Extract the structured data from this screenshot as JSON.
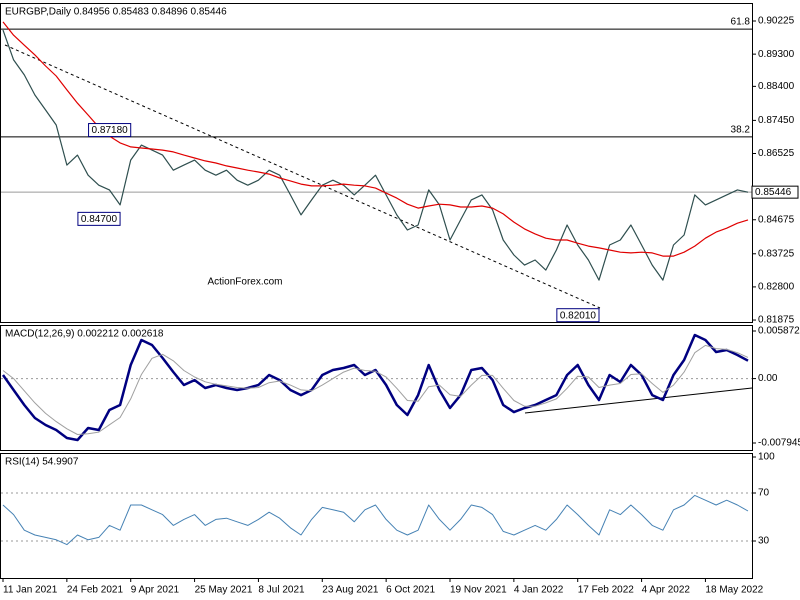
{
  "chart_data": [
    {
      "type": "line",
      "title": "EURGBP,Daily  0.84956 0.85483 0.84896 0.85446",
      "ylim": [
        0.8182,
        0.907
      ],
      "yticks": [
        0.90225,
        {
          "value": 0.893,
          "label": "0.89300"
        },
        {
          "value": 0.884,
          "label": "0.88400"
        },
        {
          "value": 0.8745,
          "label": "0.87450"
        },
        0.86525,
        0.84675,
        0.83725,
        {
          "value": 0.828,
          "label": "0.82800"
        },
        0.81875
      ],
      "levels": [
        {
          "value": 0.9,
          "label": "61.8"
        },
        {
          "value": 0.8699,
          "label": "38.2"
        }
      ],
      "current_price": 0.85446,
      "annotations": [
        {
          "value": 0.8718,
          "label": "0.87180",
          "x": 12
        },
        {
          "value": 0.847,
          "label": "0.84700",
          "x": 11
        },
        {
          "value": 0.8201,
          "label": "0.82010",
          "x": 56
        }
      ],
      "watermark": "ActionForex.com",
      "series": [
        {
          "color": "#2f4f4f",
          "values": [
            0.8997,
            0.8914,
            0.8872,
            0.8816,
            0.8774,
            0.8732,
            0.862,
            0.8648,
            0.8592,
            0.8564,
            0.8551,
            0.8509,
            0.8634,
            0.8676,
            0.8662,
            0.8648,
            0.8606,
            0.862,
            0.8634,
            0.8606,
            0.8592,
            0.8606,
            0.8578,
            0.8564,
            0.8578,
            0.8606,
            0.8592,
            0.8537,
            0.8481,
            0.8523,
            0.8564,
            0.8578,
            0.8564,
            0.8537,
            0.8564,
            0.8592,
            0.8537,
            0.8481,
            0.8439,
            0.8453,
            0.8551,
            0.8509,
            0.8411,
            0.8467,
            0.8523,
            0.8537,
            0.8495,
            0.8411,
            0.8369,
            0.8341,
            0.8355,
            0.8327,
            0.8383,
            0.8453,
            0.8397,
            0.8355,
            0.8299,
            0.8397,
            0.8411,
            0.8453,
            0.8397,
            0.8341,
            0.8299,
            0.8397,
            0.8425,
            0.8537,
            0.8509,
            0.8523,
            0.8537,
            0.8551,
            0.85446
          ]
        },
        {
          "color": "#e00000",
          "values": [
            0.902,
            0.8983,
            0.8955,
            0.8928,
            0.8897,
            0.8869,
            0.883,
            0.8793,
            0.876,
            0.8726,
            0.8701,
            0.8682,
            0.8671,
            0.8668,
            0.8665,
            0.8662,
            0.8657,
            0.8648,
            0.864,
            0.8632,
            0.8626,
            0.8618,
            0.8612,
            0.8606,
            0.8601,
            0.8595,
            0.8584,
            0.8576,
            0.8567,
            0.8562,
            0.8562,
            0.8564,
            0.8567,
            0.8564,
            0.8562,
            0.8556,
            0.8542,
            0.8528,
            0.8511,
            0.85,
            0.8506,
            0.8511,
            0.8509,
            0.8503,
            0.8503,
            0.8506,
            0.85,
            0.8484,
            0.8461,
            0.8442,
            0.8428,
            0.8416,
            0.8411,
            0.8411,
            0.8402,
            0.8394,
            0.8389,
            0.8383,
            0.8377,
            0.8375,
            0.8377,
            0.8375,
            0.8366,
            0.8366,
            0.8377,
            0.8394,
            0.8416,
            0.8433,
            0.8444,
            0.8458,
            0.8467
          ]
        }
      ]
    },
    {
      "type": "line",
      "title": "MACD(12,26,9) 0.002212 0.002618",
      "ylim": [
        -0.00881,
        0.00649
      ],
      "yticks": [
        0.005872,
        {
          "value": 0,
          "label": "0.00"
        },
        -0.007945
      ],
      "levels": [
        0
      ],
      "series": [
        {
          "color": "#000080",
          "width": 2.5,
          "values": [
            0.00044,
            -0.00141,
            -0.00326,
            -0.00486,
            -0.00573,
            -0.00634,
            -0.00733,
            -0.00758,
            -0.0061,
            -0.00634,
            -0.00388,
            -0.00326,
            0.00168,
            0.00476,
            0.00414,
            0.00254,
            0.00081,
            -0.00079,
            -0.00018,
            -0.00116,
            -0.00079,
            -0.00116,
            -0.00141,
            -0.00116,
            -0.00079,
            0.00044,
            -0.00018,
            -0.00141,
            -0.00203,
            -0.00141,
            0.00044,
            0.00106,
            0.00131,
            0.00168,
            0.00044,
            0.00106,
            -0.00079,
            -0.00326,
            -0.00449,
            -0.00203,
            0.00168,
            -0.00141,
            -0.00363,
            -0.00203,
            0.00106,
            0.00131,
            -0.00018,
            -0.00326,
            -0.00413,
            -0.00363,
            -0.00326,
            -0.00264,
            -0.00203,
            0.00044,
            0.00168,
            -0.00079,
            -0.00264,
            0.00044,
            -0.00042,
            0.00168,
            0.00044,
            -0.00203,
            -0.00264,
            0.00044,
            0.00229,
            0.00538,
            0.00476,
            0.00328,
            0.00353,
            0.00291,
            0.002212
          ]
        },
        {
          "color": "#a0a0a0",
          "width": 1,
          "values": [
            0.001,
            0.0,
            -0.0015,
            -0.003,
            -0.0043,
            -0.0053,
            -0.0062,
            -0.0069,
            -0.0068,
            -0.0066,
            -0.0057,
            -0.0048,
            -0.0025,
            0.0005,
            0.0025,
            0.003,
            0.0022,
            0.001,
            0.0002,
            -0.0004,
            -0.0007,
            -0.0009,
            -0.0011,
            -0.0012,
            -0.0011,
            -0.0005,
            -0.0003,
            -0.0008,
            -0.0014,
            -0.0015,
            -0.0008,
            0.0,
            0.0008,
            0.0013,
            0.001,
            0.0009,
            0.0002,
            -0.0012,
            -0.0027,
            -0.0028,
            -0.001,
            -0.0008,
            -0.002,
            -0.0022,
            -0.0008,
            0.0004,
            0.0004,
            -0.0012,
            -0.0027,
            -0.0034,
            -0.0034,
            -0.003,
            -0.0025,
            -0.0012,
            0.0003,
            0.0002,
            -0.0011,
            -0.0008,
            -0.0006,
            0.0005,
            0.0006,
            -0.0006,
            -0.0017,
            -0.0008,
            0.0008,
            0.0032,
            0.0041,
            0.0037,
            0.0036,
            0.0032,
            0.002618
          ]
        }
      ]
    },
    {
      "type": "line",
      "title": "RSI(14) 54.9907",
      "ylim": [
        0,
        100
      ],
      "yticks": [
        100,
        70,
        30
      ],
      "levels": [
        70,
        30
      ],
      "categories": [
        "11 Jan 2021",
        null,
        null,
        null,
        null,
        null,
        "24 Feb 2021",
        null,
        null,
        null,
        null,
        null,
        "9 Apr 2021",
        null,
        null,
        null,
        null,
        null,
        "25 May 2021",
        null,
        null,
        null,
        null,
        null,
        "8 Jul 2021",
        null,
        null,
        null,
        null,
        null,
        "23 Aug 2021",
        null,
        null,
        null,
        null,
        null,
        "6 Oct 2021",
        null,
        null,
        null,
        null,
        null,
        "19 Nov 2021",
        null,
        null,
        null,
        null,
        null,
        "4 Jan 2022",
        null,
        null,
        null,
        null,
        null,
        "17 Feb 2022",
        null,
        null,
        null,
        null,
        null,
        "4 Apr 2022",
        null,
        null,
        null,
        null,
        null,
        "18 May 2022",
        null,
        null,
        null,
        null
      ],
      "series": [
        {
          "color": "#4682b4",
          "width": 1,
          "values": [
            60,
            52,
            39,
            35,
            33,
            31,
            27,
            35,
            31,
            33,
            43,
            39,
            60,
            60,
            56,
            52,
            43,
            48,
            52,
            43,
            48,
            49,
            46,
            43,
            48,
            54,
            49,
            41,
            35,
            48,
            58,
            56,
            54,
            46,
            56,
            60,
            48,
            39,
            35,
            39,
            60,
            48,
            39,
            48,
            60,
            58,
            52,
            38,
            35,
            39,
            43,
            39,
            48,
            60,
            52,
            43,
            35,
            56,
            52,
            60,
            52,
            43,
            39,
            56,
            60,
            68,
            64,
            60,
            64,
            60,
            54.9907
          ]
        }
      ]
    }
  ]
}
